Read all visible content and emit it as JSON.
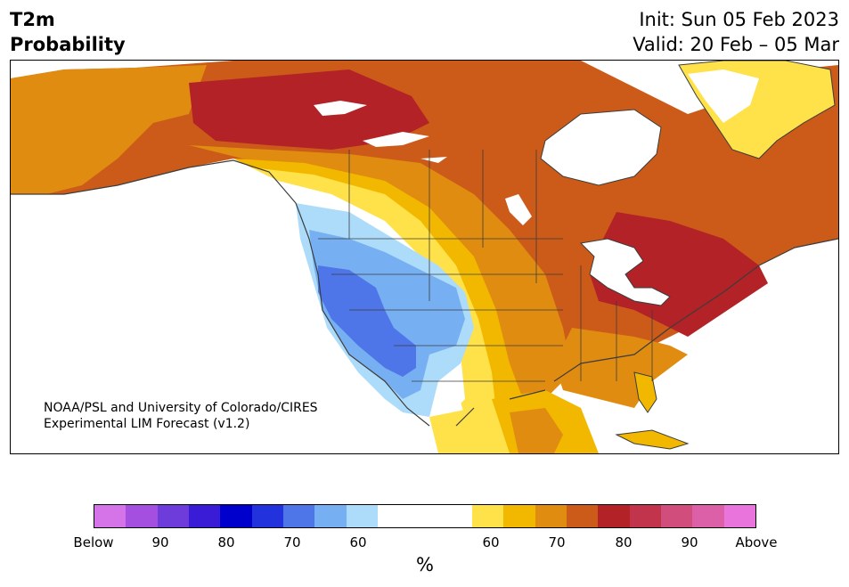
{
  "title": {
    "variable": "T2m",
    "subtitle": "Probability",
    "init": "Init: Sun 05 Feb 2023",
    "valid": "Valid: 20 Feb – 05 Mar"
  },
  "credit": {
    "line1": "NOAA/PSL and University of Colorado/CIRES",
    "line2": "Experimental LIM Forecast (v1.2)"
  },
  "colorbar": {
    "unit": "%",
    "colors": [
      "#d574e8",
      "#a44fe0",
      "#6f3cdc",
      "#3a1cd6",
      "#0000cc",
      "#2233dd",
      "#4f76e8",
      "#76b0f2",
      "#addcfa",
      "#ffffff",
      "#ffffff",
      "#ffffff",
      "#ffe14a",
      "#f2b800",
      "#e08c10",
      "#cc5a18",
      "#b22226",
      "#c2344c",
      "#d14e7c",
      "#dc60a8",
      "#e874dc"
    ],
    "tick_labels": [
      "Below",
      "90",
      "80",
      "70",
      "60",
      "60",
      "70",
      "80",
      "90",
      "Above"
    ]
  },
  "map_colors": {
    "ocean": "#ffffff",
    "coast": "#3c3c3c",
    "above_60": "#ffe14a",
    "above_50_60": "#f2b800",
    "above_70": "#e08c10",
    "above_70b": "#cc5a18",
    "above_80": "#b22226",
    "below_60": "#addcfa",
    "below_70": "#76b0f2",
    "below_80": "#4f76e8"
  }
}
